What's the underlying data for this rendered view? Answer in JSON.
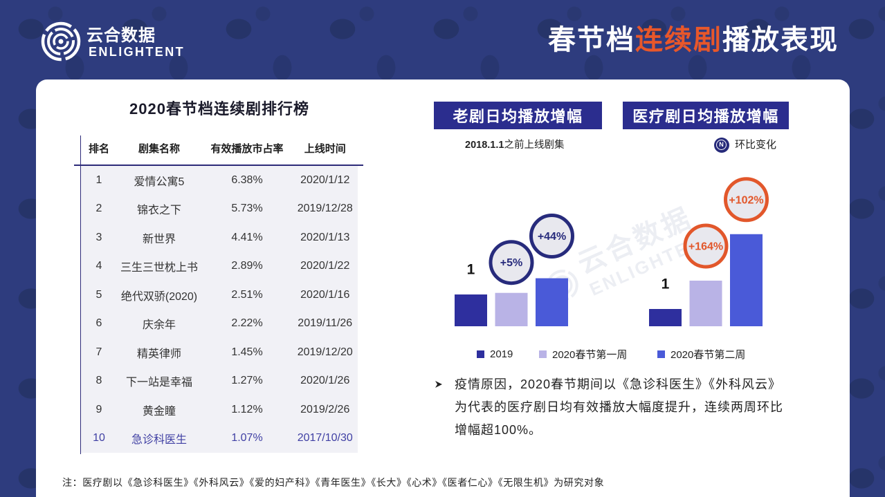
{
  "logo": {
    "name": "云合数据",
    "sub": "ENLIGHTENT"
  },
  "title": {
    "part1": "春节档",
    "highlight": "连续剧",
    "part2": "播放表现"
  },
  "ranking": {
    "title": "2020春节档连续剧排行榜",
    "headers": [
      "排名",
      "剧集名称",
      "有效播放市占率",
      "上线时间"
    ],
    "rows": [
      {
        "rank": "1",
        "name": "爱情公寓5",
        "share": "6.38%",
        "date": "2020/1/12"
      },
      {
        "rank": "2",
        "name": "锦衣之下",
        "share": "5.73%",
        "date": "2019/12/28"
      },
      {
        "rank": "3",
        "name": "新世界",
        "share": "4.41%",
        "date": "2020/1/13"
      },
      {
        "rank": "4",
        "name": "三生三世枕上书",
        "share": "2.89%",
        "date": "2020/1/22"
      },
      {
        "rank": "5",
        "name": "绝代双骄(2020)",
        "share": "2.51%",
        "date": "2020/1/16"
      },
      {
        "rank": "6",
        "name": "庆余年",
        "share": "2.22%",
        "date": "2019/11/26"
      },
      {
        "rank": "7",
        "name": "精英律师",
        "share": "1.45%",
        "date": "2019/12/20"
      },
      {
        "rank": "8",
        "name": "下一站是幸福",
        "share": "1.27%",
        "date": "2020/1/26"
      },
      {
        "rank": "9",
        "name": "黄金瞳",
        "share": "1.12%",
        "date": "2019/2/26"
      },
      {
        "rank": "10",
        "name": "急诊科医生",
        "share": "1.07%",
        "date": "2017/10/30",
        "highlight": true
      }
    ]
  },
  "chart_data": {
    "type": "bar",
    "categories": [
      "老剧日均播放增幅",
      "医疗剧日均播放增幅"
    ],
    "category_note": {
      "bold": "2018.1.1",
      "text": "之前上线剧集"
    },
    "series": [
      {
        "name": "2019",
        "color": "#2e2f9e",
        "values": [
          1,
          1
        ],
        "labels": [
          "1",
          "1"
        ]
      },
      {
        "name": "2020春节第一周",
        "color": "#b9b3e6",
        "values": [
          1.05,
          2.64
        ],
        "labels": [
          "+5%",
          "+164%"
        ]
      },
      {
        "name": "2020春节第二周",
        "color": "#4a5ad8",
        "values": [
          1.51,
          5.33
        ],
        "labels": [
          "+44%",
          "+102%"
        ]
      }
    ],
    "badge_key": {
      "letter": "N",
      "text": "环比变化"
    },
    "badge_colors": [
      "#272b7c",
      "#e2572b"
    ],
    "legend": "bottom",
    "grid": false
  },
  "bullet": {
    "lines": [
      "疫情原因，2020春节期间以《急诊科医生》《外科风云》",
      "为代表的医疗剧日均有效播放大幅度提升，连续两周环比",
      "增幅超100%。"
    ]
  },
  "footnote": "注：医疗剧以《急诊科医生》《外科风云》《爱的妇产科》《青年医生》《长大》《心术》《医者仁心》《无限生机》为研究对象",
  "watermark": {
    "name": "云合数据",
    "sub": "ENLIGHTENT"
  },
  "icons": {
    "logo": "ring-logo-icon",
    "bullet": "arrowhead-icon",
    "badge_key": "n-circle-icon"
  },
  "colors": {
    "background": "#2e3c7e",
    "title_accent": "#e8572a",
    "label_box": "#2b2d8e",
    "highlight_row": "#3f3fa3",
    "rule": "#2c2a78",
    "table_fill": "#f1f1f6"
  }
}
